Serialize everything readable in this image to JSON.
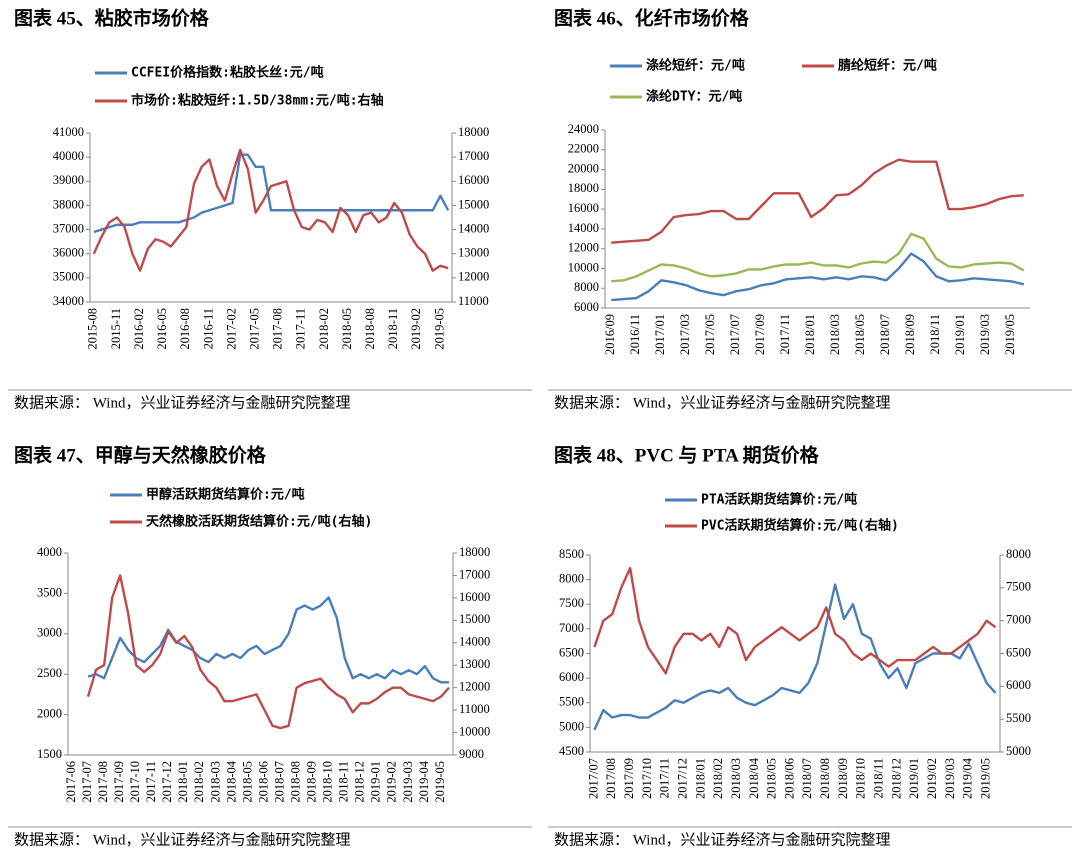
{
  "chart_data": [
    {
      "type": "line",
      "title": "图表 45、粘胶市场价格",
      "source": "数据来源： Wind，兴业证券经济与金融研究院整理",
      "categories": [
        "2015-08",
        null,
        null,
        "2015-11",
        null,
        null,
        "2016-02",
        null,
        null,
        "2016-05",
        null,
        null,
        "2016-08",
        null,
        null,
        "2016-11",
        null,
        null,
        "2017-02",
        null,
        null,
        "2017-05",
        null,
        null,
        "2017-08",
        null,
        null,
        "2017-11",
        null,
        null,
        "2018-02",
        null,
        null,
        "2018-05",
        null,
        null,
        "2018-08",
        null,
        null,
        "2018-11",
        null,
        null,
        "2019-02",
        null,
        null,
        "2019-05",
        null
      ],
      "ylim": [
        34000,
        41000
      ],
      "yticks": [
        34000,
        35000,
        36000,
        37000,
        38000,
        39000,
        40000,
        41000
      ],
      "y2lim": [
        11000,
        18000
      ],
      "y2ticks": [
        11000,
        12000,
        13000,
        14000,
        15000,
        16000,
        17000,
        18000
      ],
      "series": [
        {
          "name": "CCFEI价格指数:粘胶长丝:元/吨",
          "color": "#4a7ebb",
          "values": [
            36900,
            37000,
            37100,
            37200,
            37200,
            37200,
            37300,
            37300,
            37300,
            37300,
            37300,
            37300,
            37400,
            37500,
            37700,
            37800,
            37900,
            38000,
            38100,
            40100,
            40100,
            39600,
            39600,
            37800,
            37800,
            37800,
            37800,
            37800,
            37800,
            37800,
            37800,
            37800,
            37800,
            37800,
            37800,
            37800,
            37800,
            37800,
            37800,
            37800,
            37800,
            37800,
            37800,
            37800,
            37800,
            38400,
            37800
          ]
        },
        {
          "name": "市场价:粘胶短纤:1.5D/38mm:元/吨:右轴",
          "color": "#be4b48",
          "axis": "y2",
          "values": [
            13000,
            13700,
            14300,
            14500,
            14100,
            13000,
            12300,
            13200,
            13600,
            13500,
            13300,
            13700,
            14100,
            15900,
            16600,
            16900,
            15800,
            15200,
            16300,
            17300,
            16500,
            14700,
            15200,
            15800,
            15900,
            16000,
            14800,
            14100,
            14000,
            14400,
            14300,
            13900,
            14900,
            14600,
            13900,
            14600,
            14700,
            14300,
            14500,
            15100,
            14700,
            13800,
            13300,
            13000,
            12300,
            12500,
            12400
          ]
        }
      ]
    },
    {
      "type": "line",
      "title": "图表 46、化纤市场价格",
      "source": "数据来源： Wind，兴业证券经济与金融研究院整理",
      "categories": [
        "2016/09",
        null,
        "2016/11",
        null,
        "2017/01",
        null,
        "2017/03",
        null,
        "2017/05",
        null,
        "2017/07",
        null,
        "2017/09",
        null,
        "2017/11",
        null,
        "2018/01",
        null,
        "2018/03",
        null,
        "2018/05",
        null,
        "2018/07",
        null,
        "2018/09",
        null,
        "2018/11",
        null,
        "2019/01",
        null,
        "2019/03",
        null,
        "2019/05",
        null
      ],
      "ylim": [
        6000,
        24000
      ],
      "yticks": [
        6000,
        8000,
        10000,
        12000,
        14000,
        16000,
        18000,
        20000,
        22000,
        24000
      ],
      "series": [
        {
          "name": "涤纶短纤：元/吨",
          "color": "#4a7ebb",
          "values": [
            6800,
            6900,
            7000,
            7700,
            8800,
            8600,
            8300,
            7800,
            7500,
            7300,
            7700,
            7900,
            8300,
            8500,
            8900,
            9000,
            9100,
            8900,
            9100,
            8900,
            9200,
            9100,
            8800,
            10000,
            11500,
            10700,
            9200,
            8700,
            8800,
            9000,
            8900,
            8800,
            8700,
            8400
          ]
        },
        {
          "name": "腈纶短纤：元/吨",
          "color": "#be4b48",
          "values": [
            12600,
            12700,
            12800,
            12900,
            13700,
            15200,
            15400,
            15500,
            15800,
            15800,
            15000,
            15000,
            16300,
            17600,
            17600,
            17600,
            15200,
            16100,
            17400,
            17500,
            18400,
            19600,
            20400,
            21000,
            20800,
            20800,
            20800,
            16000,
            16000,
            16200,
            16500,
            17000,
            17300,
            17400
          ]
        },
        {
          "name": "涤纶DTY：元/吨",
          "color": "#98b954",
          "values": [
            8700,
            8800,
            9200,
            9800,
            10400,
            10300,
            10000,
            9500,
            9200,
            9300,
            9500,
            9900,
            9900,
            10200,
            10400,
            10400,
            10600,
            10300,
            10300,
            10100,
            10500,
            10700,
            10600,
            11500,
            13500,
            13000,
            11000,
            10200,
            10100,
            10400,
            10500,
            10600,
            10500,
            9800
          ]
        }
      ]
    },
    {
      "type": "line",
      "title": "图表 47、甲醇与天然橡胶价格",
      "source": "数据来源： Wind，兴业证券经济与金融研究院整理",
      "categories": [
        "2017-06",
        null,
        "2017-07",
        null,
        "2017-08",
        null,
        "2017-09",
        null,
        "2017-10",
        null,
        "2017-11",
        null,
        "2017-12",
        null,
        "2018-01",
        null,
        "2018-02",
        null,
        "2018-03",
        null,
        "2018-04",
        null,
        "2018-05",
        null,
        "2018-06",
        null,
        "2018-07",
        null,
        "2018-08",
        null,
        "2018-09",
        null,
        "2018-10",
        null,
        "2018-11",
        null,
        "2018-12",
        null,
        "2019-01",
        null,
        "2019-02",
        null,
        "2019-03",
        null,
        "2019-04",
        null,
        "2019-05",
        null
      ],
      "ylim": [
        1500,
        4000
      ],
      "yticks": [
        1500,
        2000,
        2500,
        3000,
        3500,
        4000
      ],
      "y2lim": [
        9000,
        18000
      ],
      "y2ticks": [
        9000,
        10000,
        11000,
        12000,
        13000,
        14000,
        15000,
        16000,
        17000,
        18000
      ],
      "series": [
        {
          "name": "甲醇活跃期货结算价:元/吨",
          "color": "#4a7ebb",
          "values": [
            null,
            null,
            2470,
            2500,
            2450,
            2700,
            2950,
            2800,
            2700,
            2650,
            2750,
            2850,
            3050,
            2900,
            2850,
            2800,
            2700,
            2650,
            2750,
            2700,
            2750,
            2700,
            2800,
            2850,
            2750,
            2800,
            2850,
            3000,
            3300,
            3350,
            3300,
            3350,
            3450,
            3200,
            2700,
            2450,
            2500,
            2450,
            2500,
            2450,
            2550,
            2500,
            2550,
            2500,
            2600,
            2450,
            2400,
            2400
          ]
        },
        {
          "name": "天然橡胶活跃期货结算价:元/吨(右轴)",
          "color": "#be4b48",
          "axis": "y2",
          "values": [
            null,
            null,
            11600,
            12800,
            13000,
            16000,
            17000,
            15300,
            13000,
            12700,
            13000,
            13500,
            14500,
            14000,
            14300,
            13800,
            12800,
            12300,
            12000,
            11400,
            11400,
            11500,
            11600,
            11700,
            11000,
            10300,
            10200,
            10300,
            12000,
            12200,
            12300,
            12400,
            12000,
            11700,
            11500,
            10900,
            11300,
            11300,
            11500,
            11800,
            12000,
            12000,
            11700,
            11600,
            11500,
            11400,
            11600,
            12000
          ]
        }
      ]
    },
    {
      "type": "line",
      "title": "图表 48、PVC 与 PTA 期货价格",
      "source": "数据来源： Wind，兴业证券经济与金融研究院整理",
      "categories": [
        "2017/07",
        null,
        "2017/08",
        null,
        "2017/09",
        null,
        "2017/10",
        null,
        "2017/11",
        null,
        "2017/12",
        null,
        "2018/01",
        null,
        "2018/02",
        null,
        "2018/03",
        null,
        "2018/04",
        null,
        "2018/05",
        null,
        "2018/06",
        null,
        "2018/07",
        null,
        "2018/08",
        null,
        "2018/09",
        null,
        "2018/10",
        null,
        "2018/11",
        null,
        "2018/12",
        null,
        "2019/01",
        null,
        "2019/02",
        null,
        "2019/03",
        null,
        "2019/04",
        null,
        "2019/05",
        null
      ],
      "ylim": [
        4500,
        8500
      ],
      "yticks": [
        4500,
        5000,
        5500,
        6000,
        6500,
        7000,
        7500,
        8000,
        8500
      ],
      "y2lim": [
        5000,
        8000
      ],
      "y2ticks": [
        5000,
        5500,
        6000,
        6500,
        7000,
        7500,
        8000
      ],
      "series": [
        {
          "name": "PTA活跃期货结算价:元/吨",
          "color": "#4a7ebb",
          "values": [
            4950,
            5350,
            5200,
            5250,
            5250,
            5200,
            5200,
            5300,
            5400,
            5550,
            5500,
            5600,
            5700,
            5750,
            5700,
            5800,
            5600,
            5500,
            5450,
            5550,
            5650,
            5800,
            5750,
            5700,
            5900,
            6300,
            7100,
            7900,
            7200,
            7500,
            6900,
            6800,
            6300,
            6000,
            6200,
            5800,
            6300,
            6400,
            6500,
            6500,
            6500,
            6400,
            6700,
            6300,
            5900,
            5700
          ]
        },
        {
          "name": "PVC活跃期货结算价:元/吨(右轴)",
          "color": "#be4b48",
          "axis": "y2",
          "values": [
            6600,
            7000,
            7100,
            7500,
            7800,
            7000,
            6600,
            6400,
            6200,
            6600,
            6800,
            6800,
            6700,
            6800,
            6600,
            6900,
            6800,
            6400,
            6600,
            6700,
            6800,
            6900,
            6800,
            6700,
            6800,
            6900,
            7200,
            6800,
            6700,
            6500,
            6400,
            6500,
            6400,
            6300,
            6400,
            6400,
            6400,
            6500,
            6600,
            6500,
            6500,
            6600,
            6700,
            6800,
            7000,
            6900
          ]
        }
      ]
    }
  ]
}
